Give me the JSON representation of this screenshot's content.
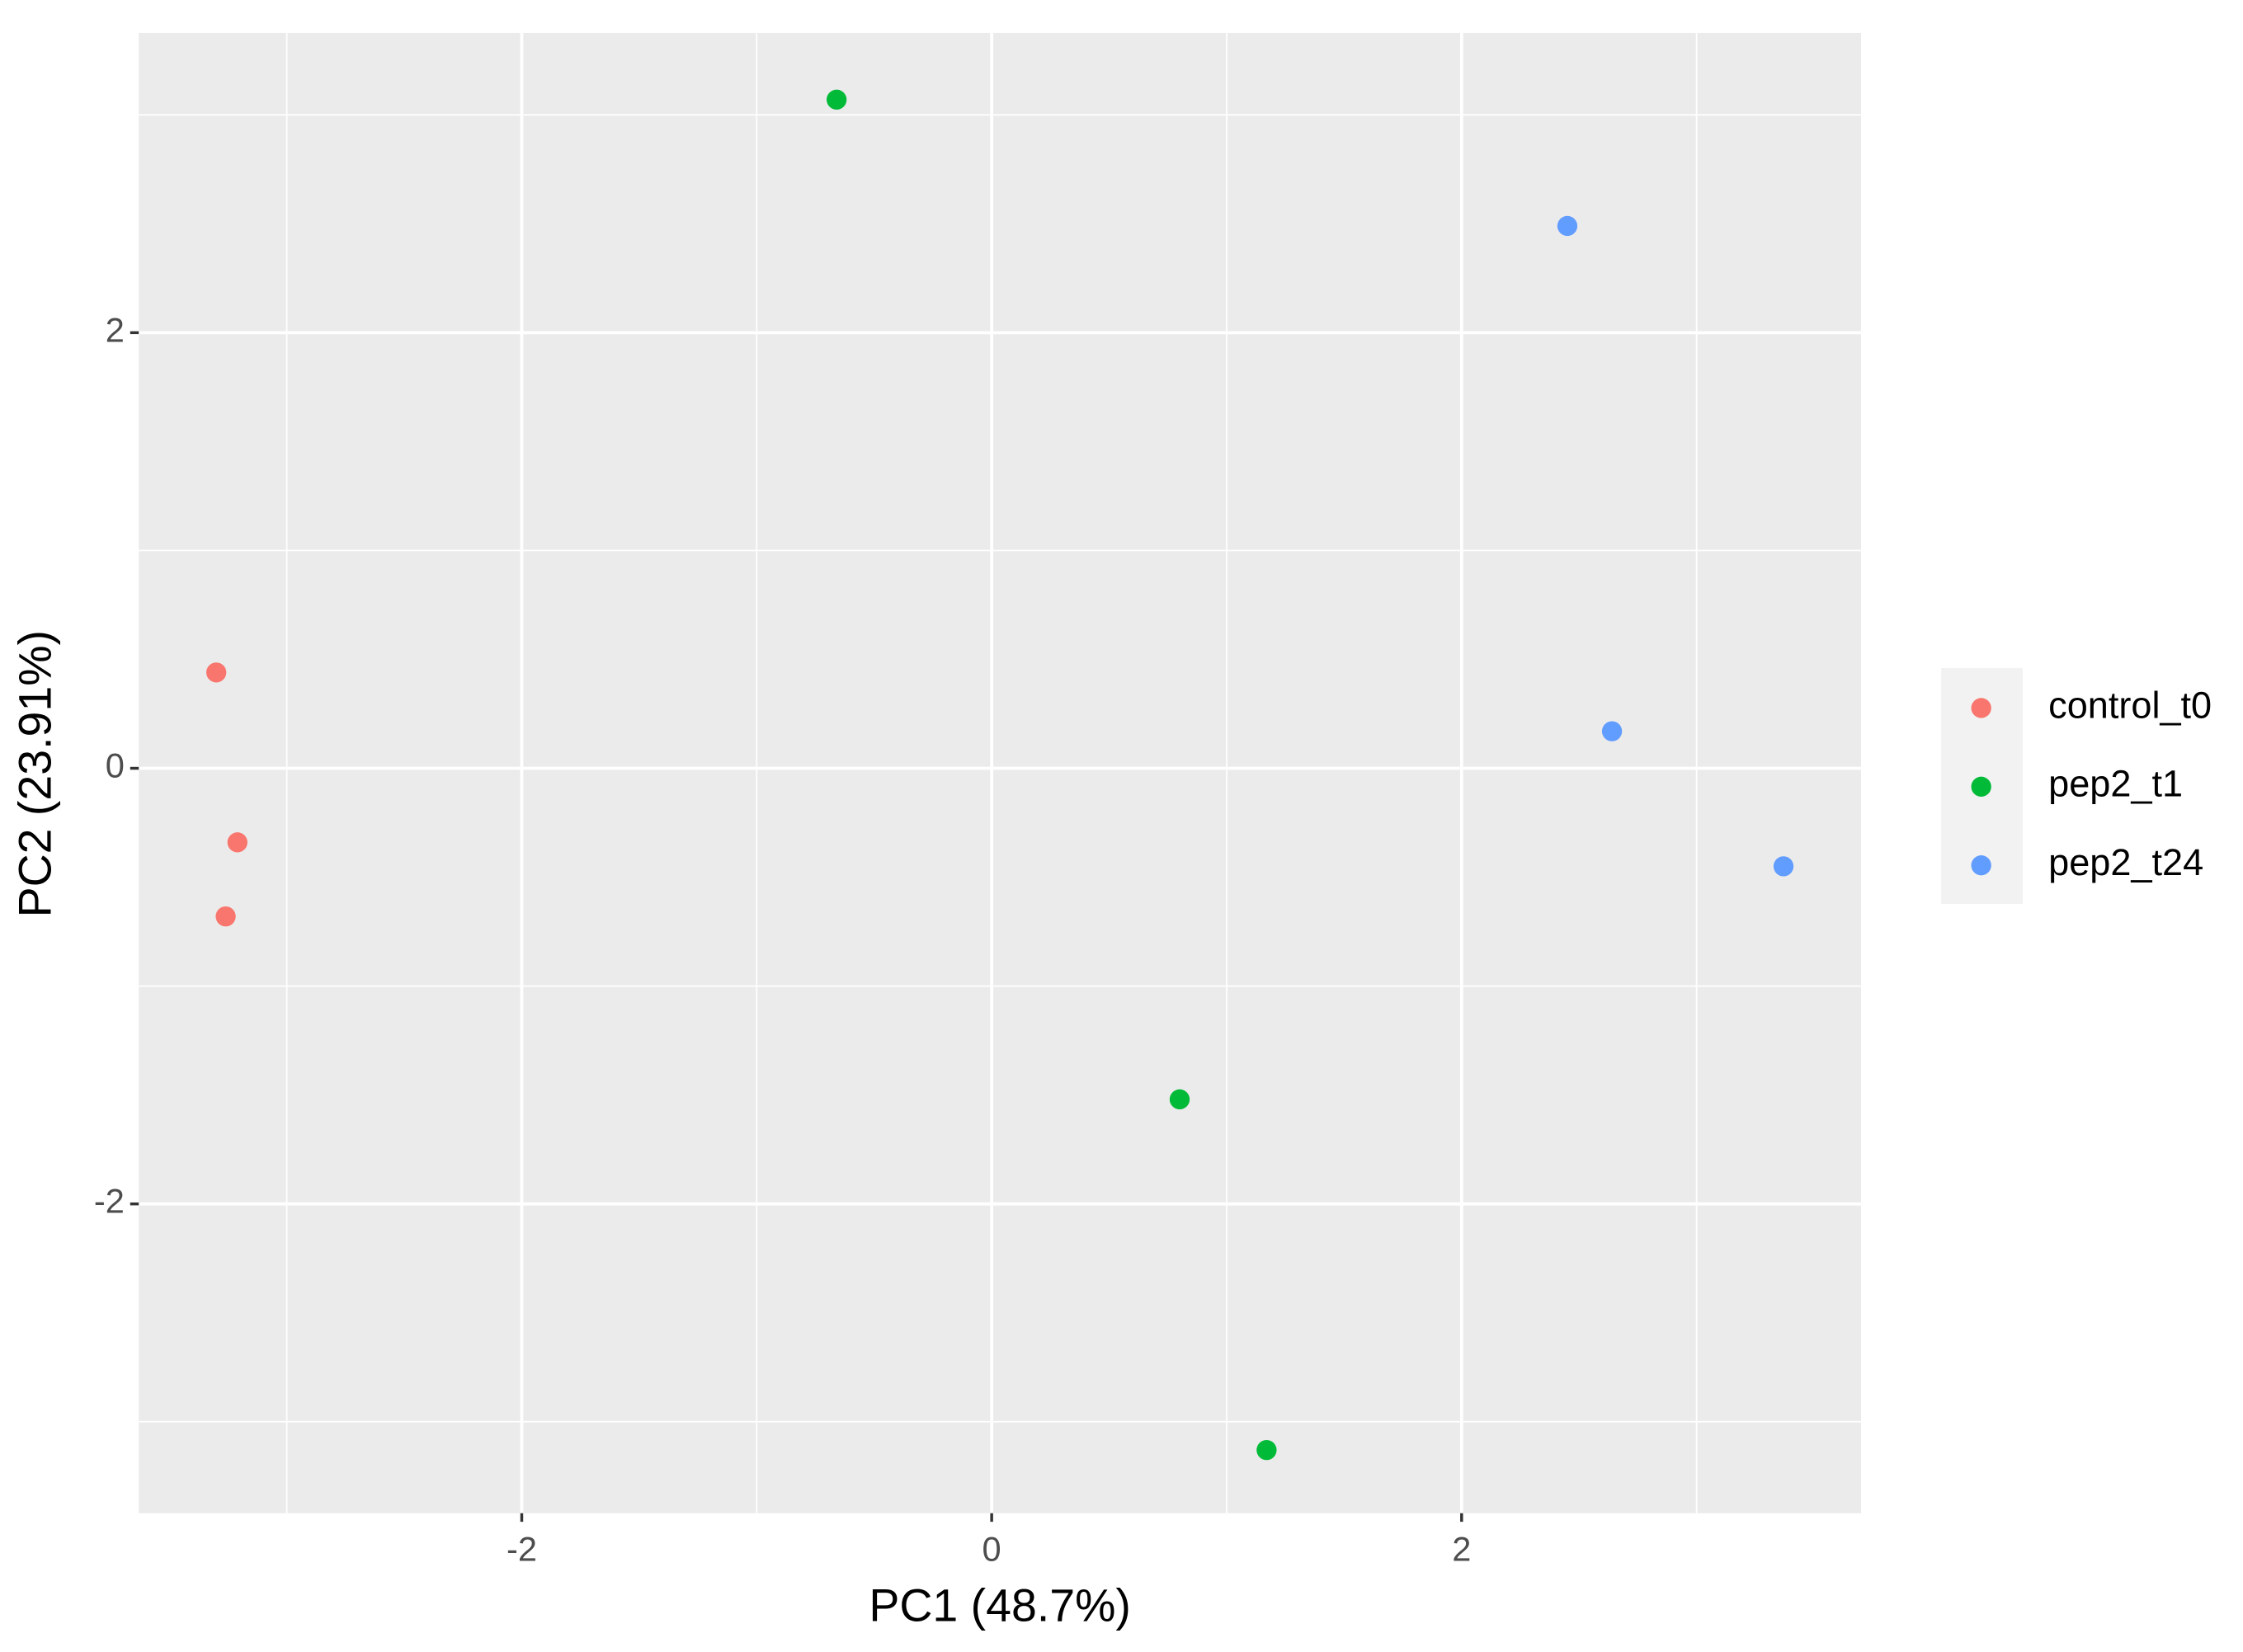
{
  "chart_data": {
    "type": "scatter",
    "x_label": "PC1 (48.7%)",
    "y_label": "PC2 (23.91%)",
    "xlim": [
      -3.63,
      3.7
    ],
    "ylim": [
      -3.42,
      3.376
    ],
    "xticks": [
      -2,
      0,
      2
    ],
    "yticks": [
      -2,
      0,
      2
    ],
    "x_minor_breaks": [
      -3,
      -1,
      1,
      3
    ],
    "y_minor_breaks": [
      -3,
      -1,
      1,
      3
    ],
    "grid": true,
    "legend": "right",
    "series": [
      {
        "name": "control_t0",
        "color": "#f8766d",
        "x": [
          -3.3,
          -3.21,
          -3.26
        ],
        "y": [
          0.44,
          -0.34,
          -0.68
        ]
      },
      {
        "name": "pep2_t1",
        "color": "#00ba38",
        "x": [
          -0.66,
          0.8,
          1.17
        ],
        "y": [
          3.07,
          -1.52,
          -3.13
        ]
      },
      {
        "name": "pep2_t24",
        "color": "#619cff",
        "x": [
          2.45,
          2.64,
          3.37
        ],
        "y": [
          2.49,
          0.17,
          -0.45
        ]
      }
    ]
  }
}
